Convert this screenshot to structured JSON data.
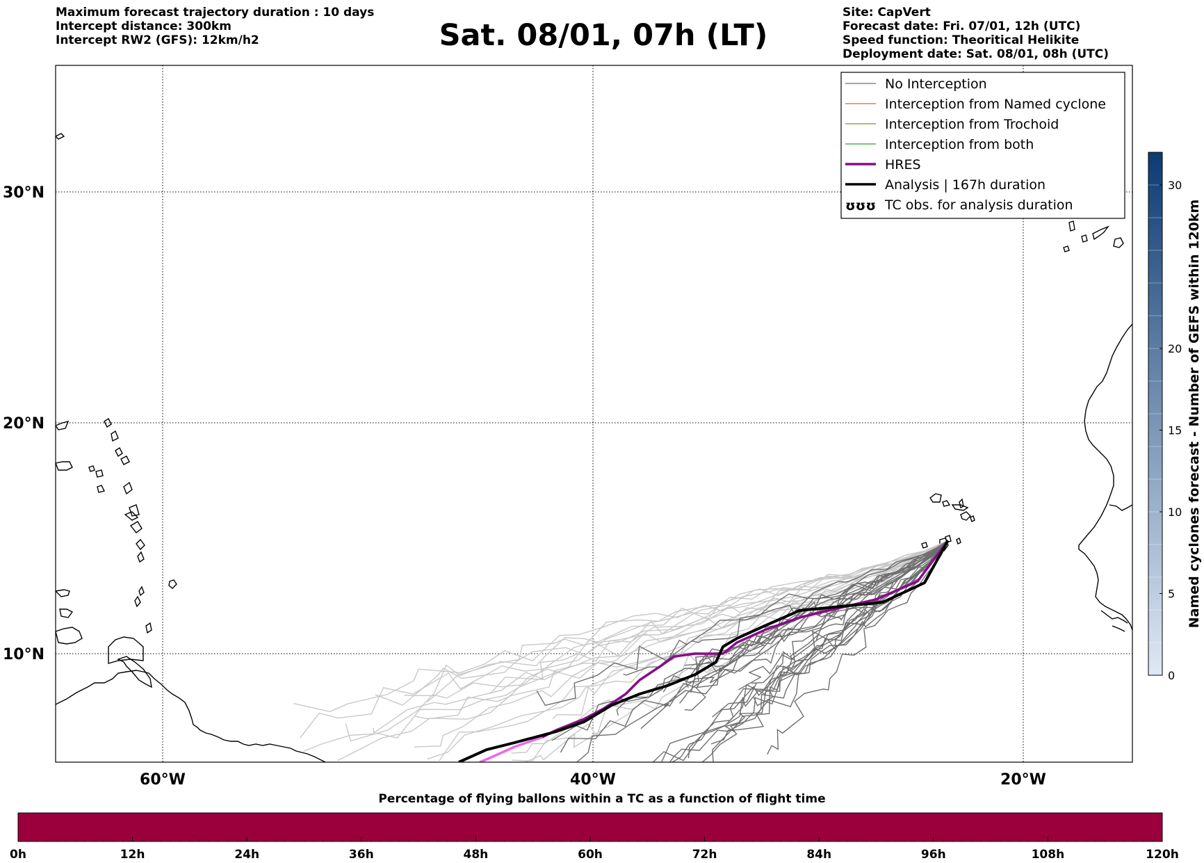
{
  "header": {
    "left_lines": [
      "Maximum forecast trajectory duration : 10 days",
      "Intercept distance: 300km",
      "Intercept RW2 (GFS):  12km/h2"
    ],
    "title": "Sat. 08/01, 07h (LT)",
    "right_lines": [
      "Site: CapVert",
      "Forecast date: Fri. 07/01, 12h (UTC)",
      "Speed function: Theoritical Helikite",
      "Deployment date: Sat. 08/01, 08h (UTC)"
    ]
  },
  "map": {
    "lon_range": [
      -65,
      -15
    ],
    "lat_range": [
      5.5,
      35
    ],
    "lat_labels": [
      {
        "lat": 30,
        "text": "30°N"
      },
      {
        "lat": 20,
        "text": "20°N"
      },
      {
        "lat": 10,
        "text": "10°N"
      }
    ],
    "lon_labels": [
      {
        "lon": -60,
        "text": "60°W"
      },
      {
        "lon": -40,
        "text": "40°W"
      },
      {
        "lon": -20,
        "text": "20°W"
      }
    ],
    "launch_site": {
      "lon": -23.5,
      "lat": 14.9
    },
    "colors": {
      "no_interception": "#6e6e6e",
      "future": "#c8c8c8",
      "named_cyclone": "#e8602c",
      "trochoid": "#8a8a2a",
      "both": "#2ca02c",
      "hres": "#8b0a8b",
      "hres_future": "#ee66ee",
      "analysis": "#000000"
    }
  },
  "legend": {
    "entries": [
      {
        "key": "no_interception",
        "label": "No Interception",
        "style": "thin",
        "color": "#6e6e6e"
      },
      {
        "key": "named_cyclone",
        "label": "Interception from Named cyclone",
        "style": "thin",
        "color": "#e8602c"
      },
      {
        "key": "trochoid",
        "label": "Interception from Trochoid",
        "style": "thin",
        "color": "#8a8a2a"
      },
      {
        "key": "both",
        "label": "Interception from both",
        "style": "thin",
        "color": "#2ca02c"
      },
      {
        "key": "hres",
        "label": "HRES",
        "style": "thick",
        "color": "#8b0a8b"
      },
      {
        "key": "analysis",
        "label": "Analysis | 167h duration",
        "style": "thick",
        "color": "#000000"
      },
      {
        "key": "tc_obs",
        "label": "TC obs. for analysis duration",
        "style": "symbol",
        "symbol": "ʊʊʊ"
      }
    ]
  },
  "colorbar": {
    "label": "Named cyclones forecast - Number of GEFS within 120km",
    "min": 0,
    "max": 32,
    "ticks": [
      0,
      5,
      10,
      15,
      20,
      30
    ],
    "color_low": "#dfe9f5",
    "color_high": "#0c3b74"
  },
  "progress_bar": {
    "title": "Percentage of flying ballons within a TC as a function of flight time",
    "ticks": [
      "0h",
      "12h",
      "24h",
      "36h",
      "48h",
      "60h",
      "72h",
      "84h",
      "96h",
      "108h",
      "120h"
    ],
    "color": "#9c003c"
  }
}
